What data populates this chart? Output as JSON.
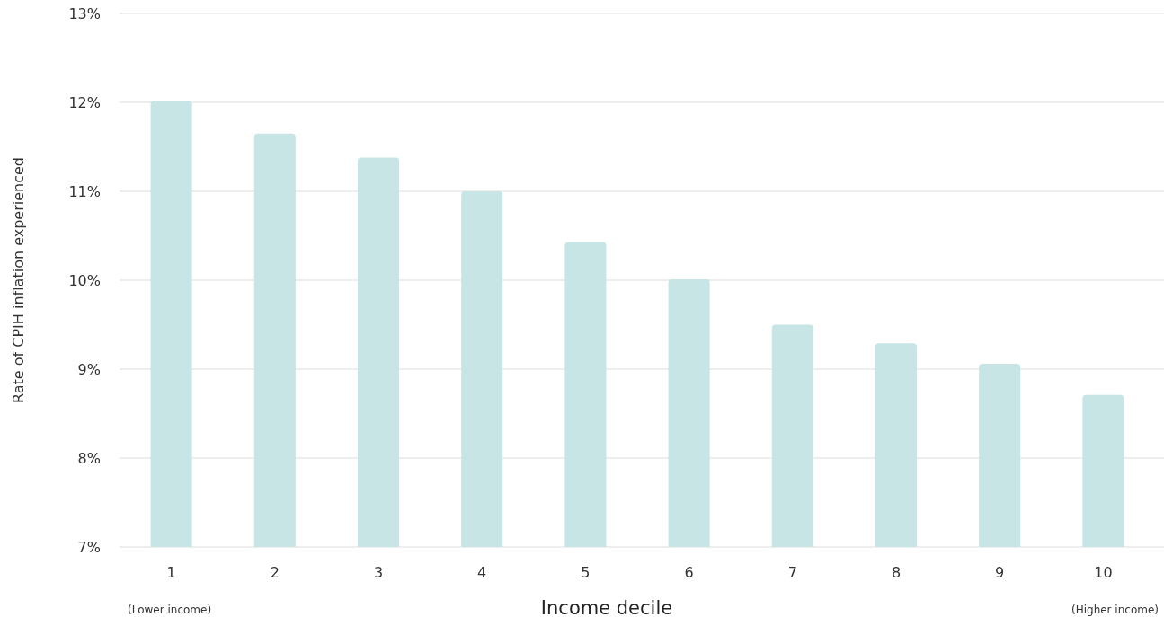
{
  "chart_data": {
    "type": "bar",
    "xlabel": "Income decile",
    "ylabel": "Rate of CPIH inflation experienced",
    "categories": [
      "1",
      "2",
      "3",
      "4",
      "5",
      "6",
      "7",
      "8",
      "9",
      "10"
    ],
    "values": [
      12.02,
      11.65,
      11.38,
      11.0,
      10.43,
      10.01,
      9.5,
      9.29,
      9.06,
      8.71
    ],
    "color": "#c6e5e4",
    "ylim": [
      7,
      13
    ],
    "yticks": [
      {
        "value": 7,
        "label": "7%"
      },
      {
        "value": 8,
        "label": "8%"
      },
      {
        "value": 9,
        "label": "9%"
      },
      {
        "value": 10,
        "label": "10%"
      },
      {
        "value": 11,
        "label": "11%"
      },
      {
        "value": 12,
        "label": "12%"
      },
      {
        "value": 13,
        "label": "13%"
      }
    ],
    "grid": "y",
    "annotations": [
      "(Lower income)",
      "(Higher income)"
    ]
  }
}
